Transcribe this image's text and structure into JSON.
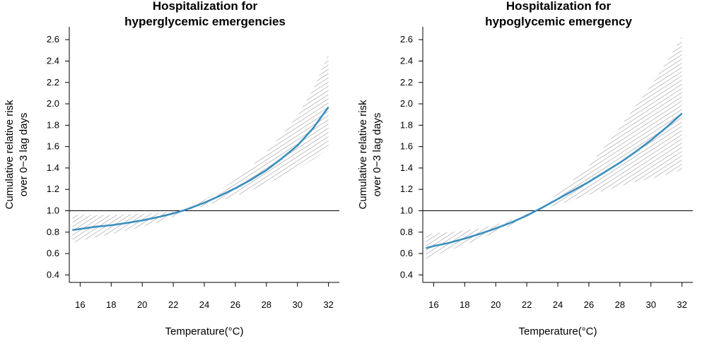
{
  "chart_data": [
    {
      "type": "line",
      "title_lines": [
        "Hospitalization for",
        "hyperglycemic emergencies"
      ],
      "xlabel": "Temperature(°C)",
      "ylabel_lines": [
        "Cumulative relative risk",
        "over 0−3 lag days"
      ],
      "xlim": [
        15.3,
        32.7
      ],
      "ylim": [
        0.33,
        2.72
      ],
      "xticks": [
        16,
        18,
        20,
        22,
        24,
        26,
        28,
        30,
        32
      ],
      "yticks": [
        0.4,
        0.6,
        0.8,
        1.0,
        1.2,
        1.4,
        1.6,
        1.8,
        2.0,
        2.2,
        2.4,
        2.6
      ],
      "ytick_labels": [
        "0.4",
        "0.6",
        "0.8",
        "1.0",
        "1.2",
        "1.4",
        "1.6",
        "1.8",
        "2.0",
        "2.2",
        "2.4",
        "2.6"
      ],
      "reference_line": 1.0,
      "series": [
        {
          "x": [
            15.5,
            16,
            17,
            18,
            19,
            20,
            21,
            22,
            22.6,
            23,
            24,
            25,
            26,
            27,
            28,
            29,
            30,
            31,
            32
          ],
          "y": [
            0.82,
            0.83,
            0.85,
            0.865,
            0.885,
            0.91,
            0.94,
            0.975,
            1.0,
            1.02,
            1.075,
            1.14,
            1.21,
            1.29,
            1.38,
            1.49,
            1.61,
            1.77,
            1.97
          ],
          "lower": [
            0.7,
            0.72,
            0.75,
            0.78,
            0.815,
            0.85,
            0.89,
            0.945,
            1.0,
            1.01,
            1.045,
            1.09,
            1.14,
            1.19,
            1.25,
            1.32,
            1.39,
            1.48,
            1.58
          ],
          "upper": [
            0.96,
            0.96,
            0.96,
            0.96,
            0.965,
            0.97,
            0.98,
            0.99,
            1.0,
            1.03,
            1.1,
            1.19,
            1.29,
            1.41,
            1.55,
            1.71,
            1.89,
            2.13,
            2.47
          ]
        }
      ],
      "colors": {
        "line": "#3a8fbf",
        "band": "#666666",
        "axis": "#000000"
      }
    },
    {
      "type": "line",
      "title_lines": [
        "Hospitalization for",
        "hypoglycemic emergency"
      ],
      "xlabel": "Temperature(°C)",
      "ylabel_lines": [
        "Cumulative relative risk",
        "over 0−3 lag days"
      ],
      "xlim": [
        15.3,
        32.7
      ],
      "ylim": [
        0.33,
        2.72
      ],
      "xticks": [
        16,
        18,
        20,
        22,
        24,
        26,
        28,
        30,
        32
      ],
      "yticks": [
        0.4,
        0.6,
        0.8,
        1.0,
        1.2,
        1.4,
        1.6,
        1.8,
        2.0,
        2.2,
        2.4,
        2.6
      ],
      "ytick_labels": [
        "0.4",
        "0.6",
        "0.8",
        "1.0",
        "1.2",
        "1.4",
        "1.6",
        "1.8",
        "2.0",
        "2.2",
        "2.4",
        "2.6"
      ],
      "reference_line": 1.0,
      "series": [
        {
          "x": [
            15.5,
            16,
            17,
            18,
            19,
            20,
            21,
            22,
            22.6,
            23,
            24,
            25,
            26,
            27,
            28,
            29,
            30,
            31,
            32
          ],
          "y": [
            0.65,
            0.67,
            0.7,
            0.74,
            0.785,
            0.835,
            0.89,
            0.955,
            1.0,
            1.03,
            1.11,
            1.19,
            1.27,
            1.36,
            1.45,
            1.55,
            1.66,
            1.78,
            1.91
          ],
          "lower": [
            0.55,
            0.58,
            0.63,
            0.68,
            0.74,
            0.8,
            0.865,
            0.94,
            1.0,
            1.01,
            1.06,
            1.1,
            1.15,
            1.19,
            1.23,
            1.27,
            1.3,
            1.34,
            1.38
          ],
          "upper": [
            0.78,
            0.79,
            0.8,
            0.815,
            0.835,
            0.87,
            0.915,
            0.97,
            1.0,
            1.05,
            1.16,
            1.29,
            1.42,
            1.6,
            1.78,
            1.98,
            2.17,
            2.39,
            2.63
          ]
        }
      ],
      "colors": {
        "line": "#3a8fbf",
        "band": "#666666",
        "axis": "#000000"
      }
    }
  ]
}
